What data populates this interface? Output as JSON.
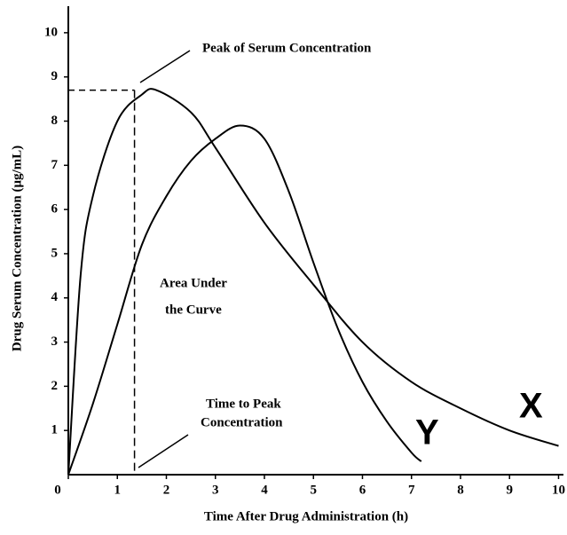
{
  "chart_data": {
    "type": "line",
    "xlabel": "Time After Drug Administration (h)",
    "ylabel": "Drug Serum Concentration (μg/mL)",
    "xlim": [
      0,
      10.1
    ],
    "ylim": [
      0,
      10.6
    ],
    "xticks": [
      0,
      1,
      2,
      3,
      4,
      5,
      6,
      7,
      8,
      9,
      10
    ],
    "yticks": [
      1,
      2,
      3,
      4,
      5,
      6,
      7,
      8,
      9,
      10
    ],
    "series": [
      {
        "name": "X",
        "color": "#000000",
        "x": [
          0,
          0.25,
          0.5,
          1,
          1.5,
          1.8,
          2.5,
          3,
          4,
          5,
          6,
          7,
          8,
          9,
          10
        ],
        "values": [
          0,
          4.5,
          6.3,
          8.0,
          8.6,
          8.7,
          8.2,
          7.4,
          5.7,
          4.3,
          3.0,
          2.1,
          1.5,
          1.0,
          0.65
        ]
      },
      {
        "name": "Y",
        "color": "#000000",
        "x": [
          0,
          0.5,
          1,
          1.5,
          2,
          2.5,
          3,
          3.5,
          4,
          4.5,
          5,
          5.5,
          6,
          6.5,
          7,
          7.2
        ],
        "values": [
          0,
          1.6,
          3.4,
          5.2,
          6.3,
          7.1,
          7.6,
          7.9,
          7.6,
          6.4,
          4.8,
          3.3,
          2.1,
          1.2,
          0.5,
          0.3
        ]
      }
    ],
    "peak": {
      "x": 1.35,
      "y": 8.7
    },
    "annotations": {
      "peak": "Peak of Serum Concentration",
      "area": [
        "Area Under",
        "the Curve"
      ],
      "time": [
        "Time to Peak",
        "Concentration"
      ]
    }
  }
}
